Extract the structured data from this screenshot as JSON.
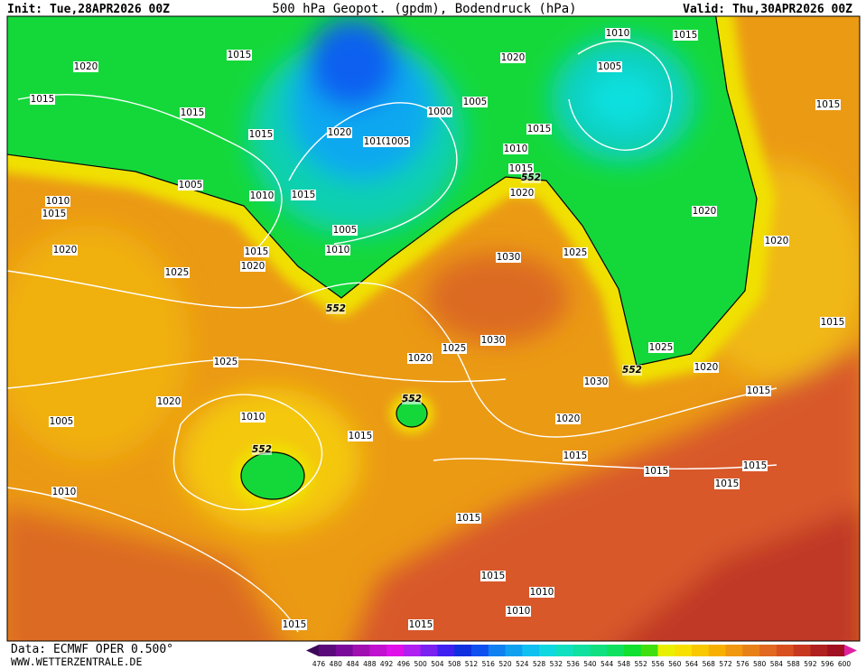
{
  "header": {
    "init": "Init: Tue,28APR2026 00Z",
    "title": "500 hPa Geopot. (gpdm), Bodendruck (hPa)",
    "valid": "Valid: Thu,30APR2026 00Z"
  },
  "footer": {
    "source": "Data: ECMWF OPER 0.500°",
    "website": "WWW.WETTERZENTRALE.DE"
  },
  "isobar_labels": [
    1020,
    1015,
    1015,
    1015,
    1015,
    1020,
    1010,
    1005,
    1000,
    1005,
    1020,
    1010,
    1015,
    1005,
    1015,
    1010,
    1015,
    1015,
    1005,
    1010,
    1015,
    1020,
    1020,
    1010,
    1015,
    1005,
    1010,
    1020,
    1015,
    1020,
    1025,
    1030,
    1025,
    1020,
    1015,
    1025,
    1030,
    1025,
    1020,
    1025,
    1020,
    1030,
    1015,
    1020,
    1010,
    1005,
    1020,
    1015,
    1015,
    1015,
    1015,
    1015,
    1010,
    1015,
    1015,
    1010,
    1010,
    1015,
    1015
  ],
  "geopotential_labels": [
    552,
    552,
    552,
    552,
    552
  ],
  "color_scale": {
    "labels": [
      476,
      480,
      484,
      488,
      492,
      496,
      500,
      504,
      508,
      512,
      516,
      520,
      524,
      528,
      532,
      536,
      540,
      544,
      548,
      552,
      556,
      560,
      564,
      568,
      572,
      576,
      580,
      584,
      588,
      592,
      596,
      600
    ],
    "colors": [
      "#3d0a5a",
      "#5a0a7a",
      "#7a0a9a",
      "#a010b0",
      "#c010d0",
      "#e010e8",
      "#b020f0",
      "#7a20f0",
      "#4020f0",
      "#1030e0",
      "#1050f0",
      "#1080f0",
      "#10a0f0",
      "#10c0f0",
      "#10d8e0",
      "#10e0c0",
      "#10e0a0",
      "#10e080",
      "#10e060",
      "#10e030",
      "#40e010",
      "#e8f000",
      "#f8e000",
      "#f8c800",
      "#f8b000",
      "#f09810",
      "#e88018",
      "#e06820",
      "#d85020",
      "#c83820",
      "#b02020",
      "#a01020",
      "#e020a0"
    ]
  }
}
